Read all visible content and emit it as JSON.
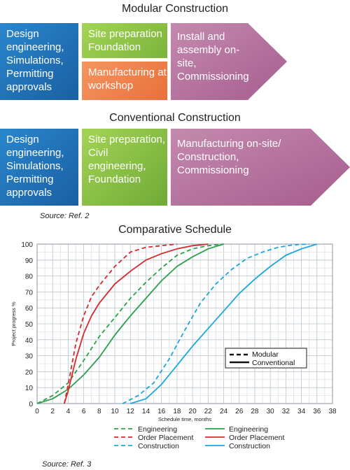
{
  "modular": {
    "title": "Modular Construction",
    "design": "Design engineering, Simulations, Permitting approvals",
    "site": "Site preparation Foundation",
    "manufacturing": "Manufacturing at workshop",
    "install": "Install and assembly on-site, Commissioning"
  },
  "conventional": {
    "title": "Conventional Construction",
    "design": "Design engineering, Simulations, Permitting approvals",
    "site": "Site preparation, Civil engineering, Foundation",
    "manufacturing": "Manufacturing on-site/ Construction, Commissioning"
  },
  "source1": "Source: Ref. 2",
  "source2": "Source: Ref. 3",
  "colors": {
    "blue": "#1f72b8",
    "green": "#8cc43f",
    "orange": "#f0824a",
    "purple": "#b56f9c",
    "engineering": "#2aa04a",
    "order": "#d7282b",
    "construction": "#1aa7dd"
  },
  "chart_data": {
    "type": "line",
    "title": "Comparative Schedule",
    "xlabel": "Schedule time, months",
    "ylabel": "Project progress %",
    "xlim": [
      0,
      38
    ],
    "ylim": [
      0,
      100
    ],
    "xticks": [
      0,
      2,
      4,
      6,
      8,
      10,
      12,
      14,
      16,
      18,
      20,
      22,
      24,
      26,
      28,
      30,
      32,
      34,
      36,
      38
    ],
    "yticks": [
      0,
      10,
      20,
      30,
      40,
      50,
      60,
      70,
      80,
      90,
      100
    ],
    "grid": true,
    "legend_style": [
      "Modular",
      "Conventional"
    ],
    "series": [
      {
        "name": "Engineering",
        "style": "Modular",
        "color": "engineering",
        "points": [
          [
            0,
            0
          ],
          [
            2,
            5
          ],
          [
            4,
            13
          ],
          [
            6,
            27
          ],
          [
            8,
            42
          ],
          [
            10,
            54
          ],
          [
            12,
            66
          ],
          [
            14,
            76
          ],
          [
            16,
            85
          ],
          [
            18,
            93
          ],
          [
            20,
            97
          ],
          [
            22,
            99
          ],
          [
            24,
            100
          ]
        ]
      },
      {
        "name": "Order Placement",
        "style": "Modular",
        "color": "order",
        "points": [
          [
            3.5,
            0
          ],
          [
            4,
            12
          ],
          [
            5,
            38
          ],
          [
            6,
            55
          ],
          [
            7,
            67
          ],
          [
            8,
            74
          ],
          [
            10,
            86
          ],
          [
            12,
            95
          ],
          [
            14,
            98
          ],
          [
            16,
            99
          ],
          [
            18,
            100
          ]
        ]
      },
      {
        "name": "Construction",
        "style": "Modular",
        "color": "construction",
        "points": [
          [
            11,
            0
          ],
          [
            13,
            5
          ],
          [
            15,
            13
          ],
          [
            17,
            28
          ],
          [
            19,
            46
          ],
          [
            21,
            63
          ],
          [
            23,
            75
          ],
          [
            25,
            84
          ],
          [
            27,
            91
          ],
          [
            29,
            95
          ],
          [
            31,
            98
          ],
          [
            33,
            99.5
          ],
          [
            35,
            100
          ]
        ]
      },
      {
        "name": "Engineering",
        "style": "Conventional",
        "color": "engineering",
        "points": [
          [
            0,
            0
          ],
          [
            2,
            3
          ],
          [
            4,
            9
          ],
          [
            6,
            18
          ],
          [
            8,
            29
          ],
          [
            10,
            43
          ],
          [
            12,
            55
          ],
          [
            14,
            66
          ],
          [
            16,
            77
          ],
          [
            18,
            86
          ],
          [
            20,
            92
          ],
          [
            22,
            97
          ],
          [
            24,
            100
          ]
        ]
      },
      {
        "name": "Order Placement",
        "style": "Conventional",
        "color": "order",
        "points": [
          [
            3.5,
            0
          ],
          [
            4,
            8
          ],
          [
            5,
            28
          ],
          [
            6,
            44
          ],
          [
            7,
            55
          ],
          [
            8,
            63
          ],
          [
            10,
            75
          ],
          [
            12,
            83
          ],
          [
            14,
            90
          ],
          [
            16,
            94
          ],
          [
            18,
            97
          ],
          [
            20,
            99
          ],
          [
            22,
            100
          ]
        ]
      },
      {
        "name": "Construction",
        "style": "Conventional",
        "color": "construction",
        "points": [
          [
            12,
            0
          ],
          [
            14,
            3
          ],
          [
            16,
            12
          ],
          [
            18,
            24
          ],
          [
            20,
            36
          ],
          [
            22,
            47
          ],
          [
            24,
            58
          ],
          [
            26,
            69
          ],
          [
            28,
            78
          ],
          [
            30,
            86
          ],
          [
            32,
            93
          ],
          [
            34,
            97
          ],
          [
            36,
            100
          ]
        ]
      }
    ]
  }
}
